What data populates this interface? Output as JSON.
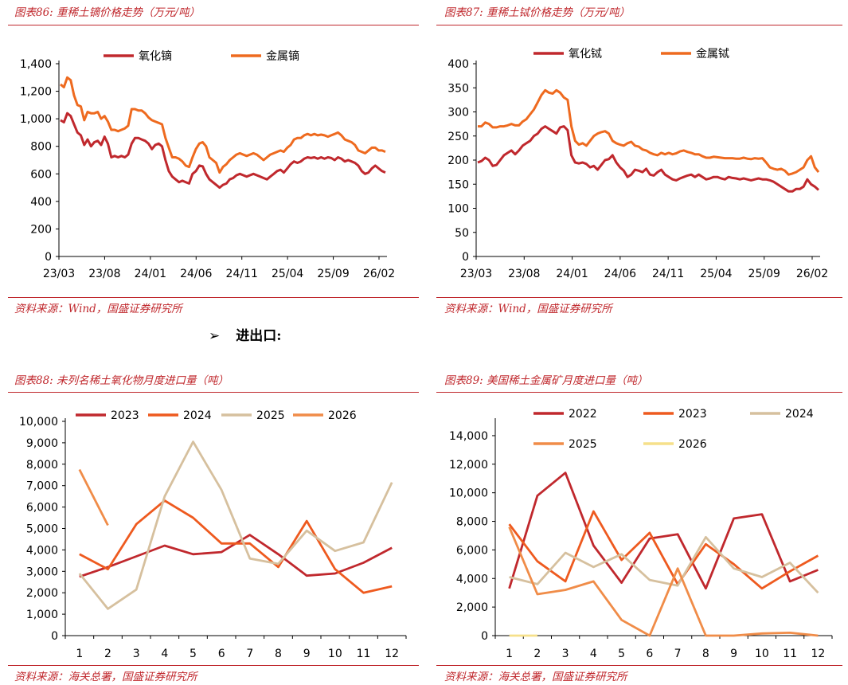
{
  "section_heading": "进出口:",
  "section_arrow": "➢",
  "charts": [
    {
      "id": "c1",
      "title": "图表86:  重稀土镝价格走势（万元/吨）",
      "source": "资料来源：Wind，国盛证券研究所",
      "chart_data": {
        "type": "line",
        "x_tick_labels": [
          "23/03",
          "23/08",
          "24/01",
          "24/06",
          "24/11",
          "25/04",
          "25/09",
          "26/02"
        ],
        "y_ticks": [
          0,
          200,
          400,
          600,
          800,
          1000,
          1200,
          1400
        ],
        "y_tick_labels": [
          "0",
          "200",
          "400",
          "600",
          "800",
          "1,000",
          "1,200",
          "1,400"
        ],
        "ylim": [
          0,
          1400
        ],
        "series": [
          {
            "name": "氧化镝",
            "color": "#c0282d",
            "values": [
              990,
              975,
              1040,
              1020,
              960,
              900,
              880,
              810,
              850,
              800,
              830,
              840,
              810,
              870,
              820,
              720,
              730,
              720,
              730,
              720,
              740,
              820,
              860,
              860,
              850,
              840,
              820,
              780,
              810,
              820,
              800,
              700,
              620,
              580,
              560,
              540,
              550,
              540,
              530,
              600,
              620,
              660,
              655,
              600,
              560,
              540,
              520,
              500,
              520,
              530,
              560,
              570,
              590,
              600,
              590,
              580,
              590,
              600,
              590,
              580,
              570,
              560,
              580,
              600,
              620,
              630,
              610,
              640,
              670,
              690,
              680,
              690,
              710,
              720,
              715,
              720,
              710,
              720,
              710,
              720,
              715,
              700,
              720,
              710,
              690,
              700,
              690,
              680,
              660,
              620,
              600,
              610,
              640,
              660,
              640,
              620,
              610
            ]
          },
          {
            "name": "金属镝",
            "color": "#ee6a1f",
            "values": [
              1250,
              1230,
              1300,
              1280,
              1170,
              1100,
              1090,
              990,
              1050,
              1040,
              1040,
              1050,
              1000,
              1020,
              980,
              920,
              920,
              910,
              920,
              930,
              950,
              1070,
              1070,
              1060,
              1060,
              1040,
              1010,
              990,
              980,
              970,
              960,
              860,
              790,
              720,
              720,
              710,
              690,
              660,
              650,
              720,
              780,
              820,
              830,
              800,
              720,
              700,
              680,
              610,
              650,
              670,
              700,
              720,
              740,
              750,
              740,
              730,
              740,
              750,
              740,
              720,
              700,
              720,
              740,
              750,
              760,
              770,
              760,
              790,
              810,
              850,
              860,
              860,
              880,
              890,
              880,
              890,
              880,
              885,
              880,
              870,
              880,
              890,
              900,
              880,
              850,
              840,
              830,
              810,
              770,
              760,
              750,
              770,
              790,
              790,
              770,
              770,
              760
            ]
          }
        ]
      }
    },
    {
      "id": "c2",
      "title": "图表87:  重稀土铽价格走势（万元/吨）",
      "source": "资料来源：Wind，国盛证券研究所",
      "chart_data": {
        "type": "line",
        "x_tick_labels": [
          "23/03",
          "23/08",
          "24/01",
          "24/06",
          "24/11",
          "25/04",
          "25/09",
          "26/02"
        ],
        "y_ticks": [
          0,
          50,
          100,
          150,
          200,
          250,
          300,
          350,
          400
        ],
        "y_tick_labels": [
          "0",
          "50",
          "100",
          "150",
          "200",
          "250",
          "300",
          "350",
          "400"
        ],
        "ylim": [
          0,
          400
        ],
        "series": [
          {
            "name": "氧化铽",
            "color": "#c0282d",
            "values": [
              195,
              198,
              205,
              200,
              188,
              190,
              200,
              210,
              215,
              220,
              212,
              220,
              230,
              235,
              240,
              250,
              255,
              265,
              270,
              265,
              260,
              255,
              268,
              270,
              262,
              210,
              195,
              193,
              195,
              192,
              185,
              188,
              180,
              190,
              200,
              202,
              210,
              195,
              185,
              178,
              165,
              170,
              180,
              178,
              175,
              182,
              170,
              168,
              175,
              180,
              170,
              165,
              160,
              158,
              162,
              165,
              168,
              170,
              165,
              170,
              165,
              160,
              162,
              165,
              165,
              162,
              160,
              165,
              163,
              162,
              160,
              162,
              160,
              158,
              160,
              162,
              160,
              160,
              158,
              155,
              150,
              145,
              140,
              135,
              135,
              140,
              140,
              145,
              160,
              150,
              145,
              138
            ]
          },
          {
            "name": "金属铽",
            "color": "#ee6a1f",
            "values": [
              270,
              270,
              278,
              275,
              268,
              268,
              270,
              270,
              272,
              275,
              272,
              272,
              280,
              285,
              295,
              305,
              320,
              335,
              345,
              340,
              338,
              345,
              340,
              330,
              325,
              270,
              240,
              232,
              235,
              230,
              240,
              250,
              255,
              258,
              260,
              255,
              240,
              235,
              232,
              230,
              235,
              238,
              230,
              228,
              222,
              220,
              215,
              212,
              210,
              215,
              212,
              215,
              212,
              214,
              218,
              220,
              217,
              215,
              212,
              212,
              208,
              205,
              205,
              207,
              206,
              205,
              204,
              204,
              204,
              203,
              203,
              205,
              203,
              202,
              204,
              203,
              204,
              195,
              185,
              182,
              180,
              182,
              178,
              170,
              172,
              175,
              180,
              185,
              200,
              208,
              185,
              175
            ]
          }
        ]
      }
    },
    {
      "id": "c3",
      "title": "图表88:  未列名稀土氧化物月度进口量（吨）",
      "source": "资料来源：海关总署，国盛证券研究所",
      "chart_data": {
        "type": "line",
        "categories": [
          "1",
          "2",
          "3",
          "4",
          "5",
          "6",
          "7",
          "8",
          "9",
          "10",
          "11",
          "12"
        ],
        "y_ticks": [
          0,
          1000,
          2000,
          3000,
          4000,
          5000,
          6000,
          7000,
          8000,
          9000,
          10000
        ],
        "y_tick_labels": [
          "0",
          "1,000",
          "2,000",
          "3,000",
          "4,000",
          "5,000",
          "6,000",
          "7,000",
          "8,000",
          "9,000",
          "10,000"
        ],
        "ylim": [
          0,
          10000
        ],
        "series": [
          {
            "name": "2023",
            "color": "#c0282d",
            "values": [
              2750,
              3200,
              3700,
              4200,
              3800,
              3900,
              4700,
              3800,
              2800,
              2900,
              3400,
              4100
            ]
          },
          {
            "name": "2024",
            "color": "#ee5a1f",
            "values": [
              3800,
              3100,
              5200,
              6300,
              5500,
              4300,
              4300,
              3200,
              5350,
              3100,
              2000,
              2300
            ]
          },
          {
            "name": "2025",
            "color": "#d6c09e",
            "values": [
              2900,
              1250,
              2150,
              6500,
              9050,
              6800,
              3600,
              3350,
              4900,
              3950,
              4350,
              7150
            ]
          },
          {
            "name": "2026",
            "color": "#f08c48",
            "values": [
              7750,
              5150,
              null,
              null,
              null,
              null,
              null,
              null,
              null,
              null,
              null,
              null
            ]
          }
        ]
      }
    },
    {
      "id": "c4",
      "title": "图表89:  美国稀土金属矿月度进口量（吨）",
      "source": "资料来源：海关总署，国盛证券研究所",
      "chart_data": {
        "type": "line",
        "categories": [
          "1",
          "2",
          "3",
          "4",
          "5",
          "6",
          "7",
          "8",
          "9",
          "10",
          "11",
          "12"
        ],
        "y_ticks": [
          0,
          2000,
          4000,
          6000,
          8000,
          10000,
          12000,
          14000
        ],
        "y_tick_labels": [
          "0",
          "2,000",
          "4,000",
          "6,000",
          "8,000",
          "10,000",
          "12,000",
          "14,000"
        ],
        "ylim": [
          0,
          15000
        ],
        "series": [
          {
            "name": "2022",
            "color": "#c0282d",
            "values": [
              3300,
              9800,
              11400,
              6300,
              3700,
              6800,
              7100,
              3300,
              8200,
              8500,
              3800,
              4600
            ]
          },
          {
            "name": "2023",
            "color": "#ee5a1f",
            "values": [
              7800,
              5200,
              3800,
              8700,
              5300,
              7200,
              3600,
              6400,
              5000,
              3300,
              4500,
              5600
            ]
          },
          {
            "name": "2024",
            "color": "#d6c09e",
            "values": [
              4100,
              3600,
              5800,
              4800,
              5700,
              3900,
              3500,
              6900,
              4700,
              4100,
              5100,
              3000
            ]
          },
          {
            "name": "2025",
            "color": "#f08c48",
            "values": [
              7600,
              2900,
              3200,
              3800,
              1100,
              0,
              4700,
              0,
              0,
              150,
              200,
              0
            ]
          },
          {
            "name": "2026",
            "color": "#f6e08a",
            "values": [
              0,
              0,
              null,
              null,
              null,
              null,
              null,
              null,
              null,
              null,
              null,
              null
            ]
          }
        ]
      }
    }
  ]
}
